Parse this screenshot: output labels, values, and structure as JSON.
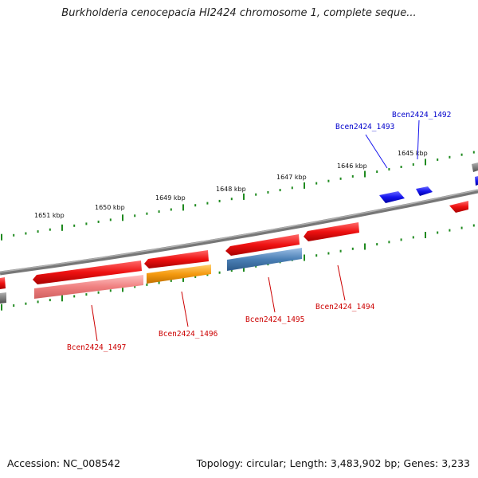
{
  "title": "Burkholderia cenocepacia HI2424 chromosome 1, complete seque...",
  "scale_labels": [
    "1651 kbp",
    "1650 kbp",
    "1649 kbp",
    "1648 kbp",
    "1647 kbp",
    "1646 kbp",
    "1645 kbp"
  ],
  "gene_labels_forward": [
    "Bcen2424_1493",
    "Bcen2424_1492"
  ],
  "gene_labels_reverse": [
    "Bcen2424_1497",
    "Bcen2424_1496",
    "Bcen2424_1495",
    "Bcen2424_1494"
  ],
  "footer": {
    "accession": "Accession: NC_008542",
    "topology": "Topology: circular; Length: 3,483,902 bp; Genes: 3,233"
  },
  "colors": {
    "forward_gene": "#1515ee",
    "reverse_gene": "#ee1111",
    "pink_feature": "#f08080",
    "orange_feature": "#f59a10",
    "steelblue_feature": "#4a7fb5",
    "backbone": "#808080",
    "ticks": "#1f8a1f",
    "forward_label": "#0000cc",
    "reverse_label": "#cc0000"
  }
}
